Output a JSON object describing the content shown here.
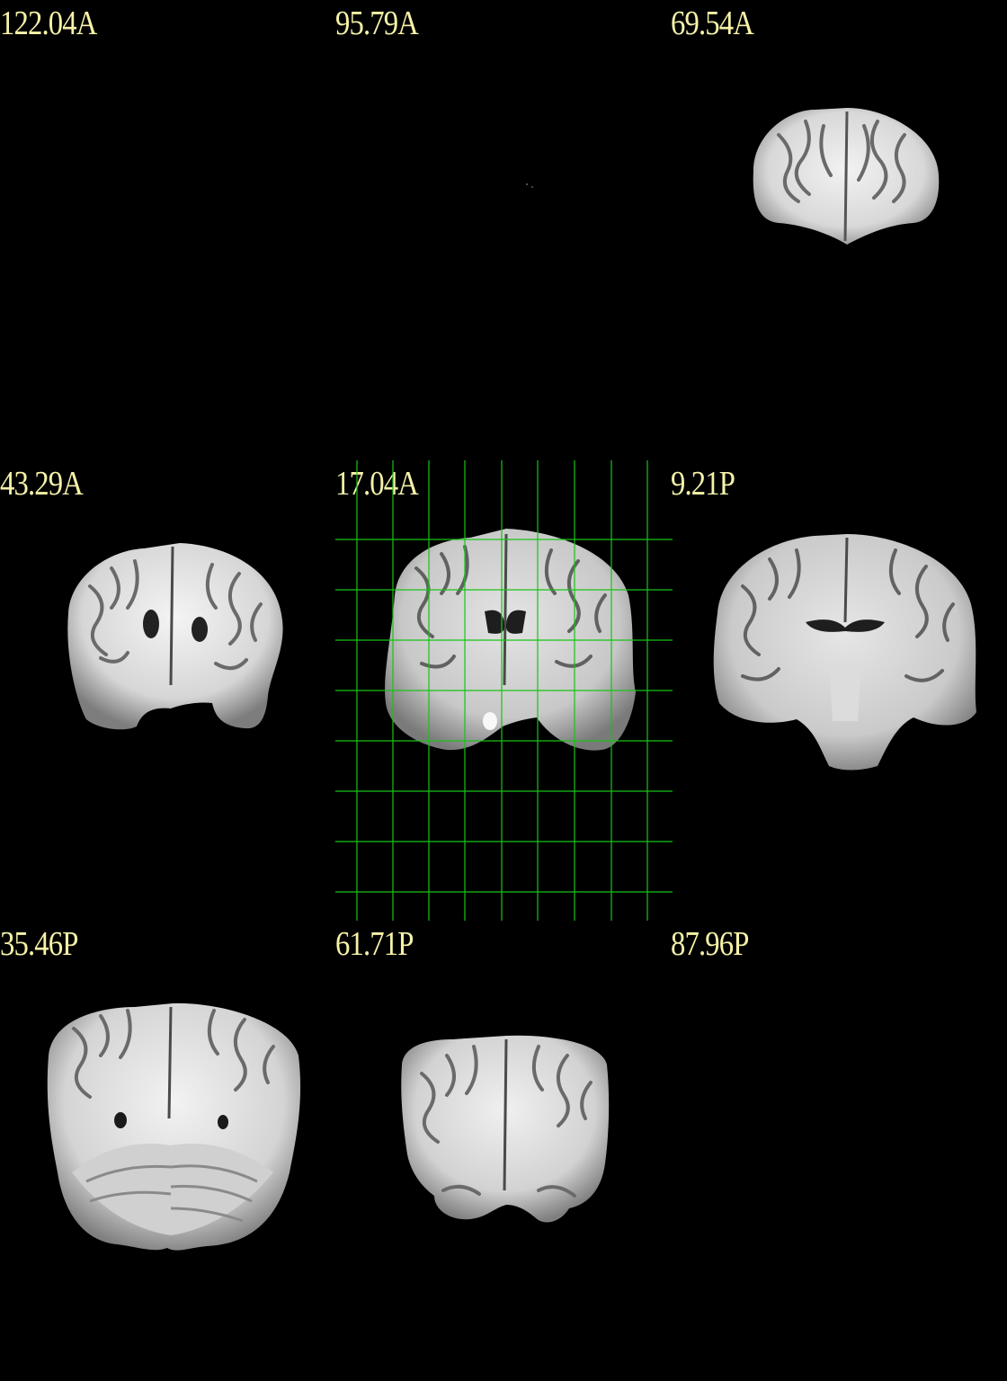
{
  "viewer": {
    "layout": "3x3 montage",
    "view": "coronal",
    "label_color": "#f6f2a8",
    "overlay_color": "#17c417",
    "background_color": "#000000"
  },
  "slices": [
    {
      "label": "122.04A"
    },
    {
      "label": "95.79A"
    },
    {
      "label": "69.54A"
    },
    {
      "label": "43.29A"
    },
    {
      "label": "17.04A"
    },
    {
      "label": "9.21P"
    },
    {
      "label": "35.46P"
    },
    {
      "label": "61.71P"
    },
    {
      "label": "87.96P"
    }
  ]
}
